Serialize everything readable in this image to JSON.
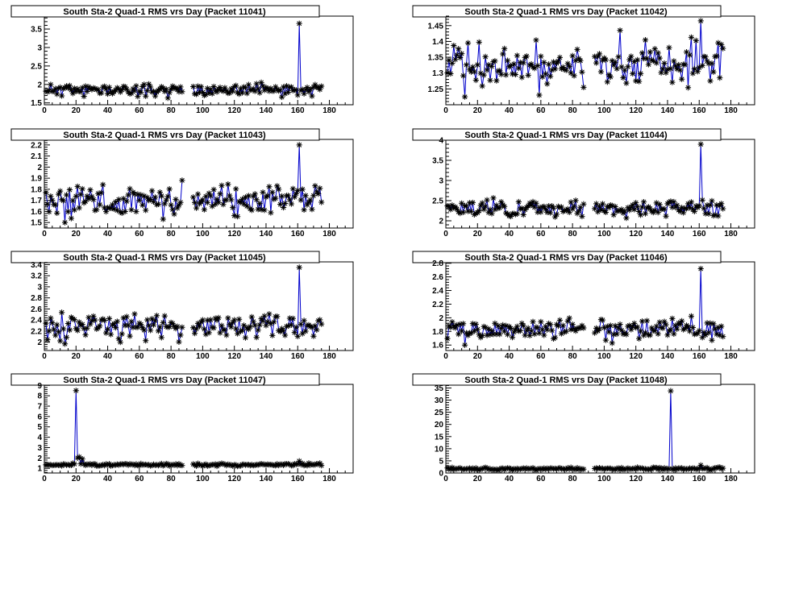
{
  "chart_data": [
    {
      "type": "line",
      "title": "South Sta-2 Quad-1 RMS vrs Day (Packet 11041)",
      "xlabel": "",
      "ylabel": "",
      "xlim": [
        0,
        195
      ],
      "ylim": [
        1.45,
        3.85
      ],
      "x_ticks": [
        0,
        20,
        40,
        60,
        80,
        100,
        120,
        140,
        160,
        180
      ],
      "y_ticks": [
        1.5,
        2,
        2.5,
        3,
        3.5
      ],
      "grid": false,
      "marker": "asterisk",
      "line_color": "#0000cc",
      "marker_color": "#000000",
      "baseline": 1.85,
      "noise": 0.08,
      "seed": 11,
      "spikes": [
        {
          "x": 161,
          "y": 3.65
        }
      ]
    },
    {
      "type": "line",
      "title": "South Sta-2 Quad-1 RMS vrs Day (Packet 11042)",
      "xlabel": "",
      "ylabel": "",
      "xlim": [
        0,
        195
      ],
      "ylim": [
        1.2,
        1.48
      ],
      "x_ticks": [
        0,
        20,
        40,
        60,
        80,
        100,
        120,
        140,
        160,
        180
      ],
      "y_ticks": [
        1.25,
        1.3,
        1.35,
        1.4,
        1.45
      ],
      "grid": false,
      "marker": "asterisk",
      "line_color": "#0000cc",
      "marker_color": "#000000",
      "baseline": 1.325,
      "noise": 0.035,
      "seed": 12,
      "spikes": [
        {
          "x": 161,
          "y": 1.465
        },
        {
          "x": 110,
          "y": 1.435
        },
        {
          "x": 12,
          "y": 1.225
        }
      ]
    },
    {
      "type": "line",
      "title": "South Sta-2 Quad-1 RMS vrs Day (Packet 11043)",
      "xlabel": "",
      "ylabel": "",
      "xlim": [
        0,
        195
      ],
      "ylim": [
        1.45,
        2.25
      ],
      "x_ticks": [
        0,
        20,
        40,
        60,
        80,
        100,
        120,
        140,
        160,
        180
      ],
      "y_ticks": [
        1.5,
        1.6,
        1.7,
        1.8,
        1.9,
        2,
        2.1,
        2.2
      ],
      "grid": false,
      "marker": "asterisk",
      "line_color": "#0000cc",
      "marker_color": "#000000",
      "baseline": 1.7,
      "noise": 0.07,
      "seed": 13,
      "spikes": [
        {
          "x": 161,
          "y": 2.2
        },
        {
          "x": 13,
          "y": 1.5
        },
        {
          "x": 75,
          "y": 1.53
        }
      ]
    },
    {
      "type": "line",
      "title": "South Sta-2 Quad-1 RMS vrs Day (Packet 11044)",
      "xlabel": "",
      "ylabel": "",
      "xlim": [
        0,
        195
      ],
      "ylim": [
        1.82,
        4.02
      ],
      "x_ticks": [
        0,
        20,
        40,
        60,
        80,
        100,
        120,
        140,
        160,
        180
      ],
      "y_ticks": [
        2,
        2.5,
        3,
        3.5,
        4
      ],
      "grid": false,
      "marker": "asterisk",
      "line_color": "#0000cc",
      "marker_color": "#000000",
      "baseline": 2.3,
      "noise": 0.1,
      "seed": 14,
      "spikes": [
        {
          "x": 161,
          "y": 3.9
        }
      ]
    },
    {
      "type": "line",
      "title": "South Sta-2 Quad-1 RMS vrs Day (Packet 11045)",
      "xlabel": "",
      "ylabel": "",
      "xlim": [
        0,
        195
      ],
      "ylim": [
        1.85,
        3.45
      ],
      "x_ticks": [
        0,
        20,
        40,
        60,
        80,
        100,
        120,
        140,
        160,
        180
      ],
      "y_ticks": [
        2,
        2.2,
        2.4,
        2.6,
        2.8,
        3,
        3.2,
        3.4
      ],
      "grid": false,
      "marker": "asterisk",
      "line_color": "#0000cc",
      "marker_color": "#000000",
      "baseline": 2.3,
      "noise": 0.11,
      "seed": 15,
      "spikes": [
        {
          "x": 161,
          "y": 3.35
        },
        {
          "x": 13,
          "y": 1.97
        },
        {
          "x": 48,
          "y": 2.0
        }
      ]
    },
    {
      "type": "line",
      "title": "South Sta-2 Quad-1 RMS vrs Day (Packet 11046)",
      "xlabel": "",
      "ylabel": "",
      "xlim": [
        0,
        195
      ],
      "ylim": [
        1.52,
        2.82
      ],
      "x_ticks": [
        0,
        20,
        40,
        60,
        80,
        100,
        120,
        140,
        160,
        180
      ],
      "y_ticks": [
        1.6,
        1.8,
        2,
        2.2,
        2.4,
        2.6,
        2.8
      ],
      "grid": false,
      "marker": "asterisk",
      "line_color": "#0000cc",
      "marker_color": "#000000",
      "baseline": 1.83,
      "noise": 0.07,
      "seed": 16,
      "spikes": [
        {
          "x": 161,
          "y": 2.72
        },
        {
          "x": 12,
          "y": 1.6
        }
      ]
    },
    {
      "type": "line",
      "title": "South Sta-2 Quad-1 RMS vrs Day (Packet 11047)",
      "xlabel": "",
      "ylabel": "",
      "xlim": [
        0,
        195
      ],
      "ylim": [
        0.55,
        9.1
      ],
      "x_ticks": [
        0,
        20,
        40,
        60,
        80,
        100,
        120,
        140,
        160,
        180
      ],
      "y_ticks": [
        1,
        2,
        3,
        4,
        5,
        6,
        7,
        8,
        9
      ],
      "grid": false,
      "marker": "asterisk",
      "line_color": "#0000cc",
      "marker_color": "#000000",
      "baseline": 1.35,
      "noise": 0.06,
      "seed": 17,
      "spikes": [
        {
          "x": 20,
          "y": 8.5
        },
        {
          "x": 22,
          "y": 2.1
        },
        {
          "x": 21,
          "y": 2.0
        },
        {
          "x": 24,
          "y": 1.9
        },
        {
          "x": 161,
          "y": 1.7
        }
      ]
    },
    {
      "type": "line",
      "title": "South Sta-2 Quad-1 RMS vrs Day (Packet 11048)",
      "xlabel": "",
      "ylabel": "",
      "xlim": [
        0,
        195
      ],
      "ylim": [
        0,
        36.5
      ],
      "x_ticks": [
        0,
        20,
        40,
        60,
        80,
        100,
        120,
        140,
        160,
        180
      ],
      "y_ticks": [
        0,
        5,
        10,
        15,
        20,
        25,
        30,
        35
      ],
      "grid": false,
      "marker": "asterisk",
      "line_color": "#0000cc",
      "marker_color": "#000000",
      "baseline": 1.7,
      "noise": 0.25,
      "seed": 18,
      "spikes": [
        {
          "x": 142,
          "y": 33.8
        },
        {
          "x": 161,
          "y": 3.2
        }
      ]
    }
  ],
  "x_range_common": {
    "start": 1,
    "end": 175,
    "gap_start": 88,
    "gap_end": 93
  }
}
